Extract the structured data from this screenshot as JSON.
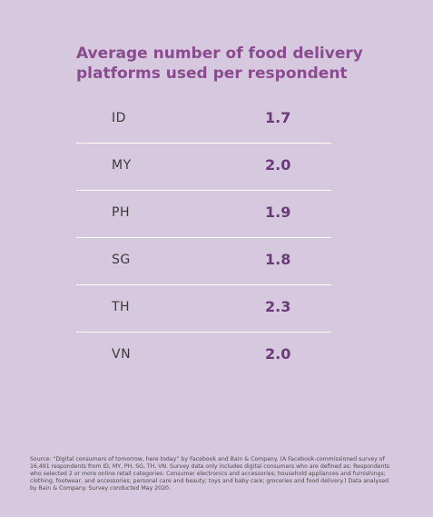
{
  "chart_data": {
    "type": "table",
    "title_lines": [
      "Average number of food delivery",
      "platforms used per respondent"
    ],
    "rows": [
      {
        "code": "ID",
        "value": "1.7"
      },
      {
        "code": "MY",
        "value": "2.0"
      },
      {
        "code": "PH",
        "value": "1.9"
      },
      {
        "code": "SG",
        "value": "1.8"
      },
      {
        "code": "TH",
        "value": "2.3"
      },
      {
        "code": "VN",
        "value": "2.0"
      }
    ]
  },
  "source_text": "Source: “Digital consumers of tomorrow, here today” by Facebook and Bain & Company. (A Facebook-commissioned survey of 16,491 respondents from ID, MY, PH, SG, TH, VN. Survey data only includes digital consumers who are defined as: Respondents who selected 2 or more online retail categories: Consumer electronics and accessories; household appliances and furnishings; clothing, footwear, and accessories; personal care and beauty; toys and baby care; groceries and food delivery.) Data analysed by Bain & Company. Survey conducted May 2020.",
  "colors": {
    "background": "#d6c9df",
    "title": "#8b4b8f",
    "value": "#6a3b78",
    "divider": "#ffffff"
  }
}
